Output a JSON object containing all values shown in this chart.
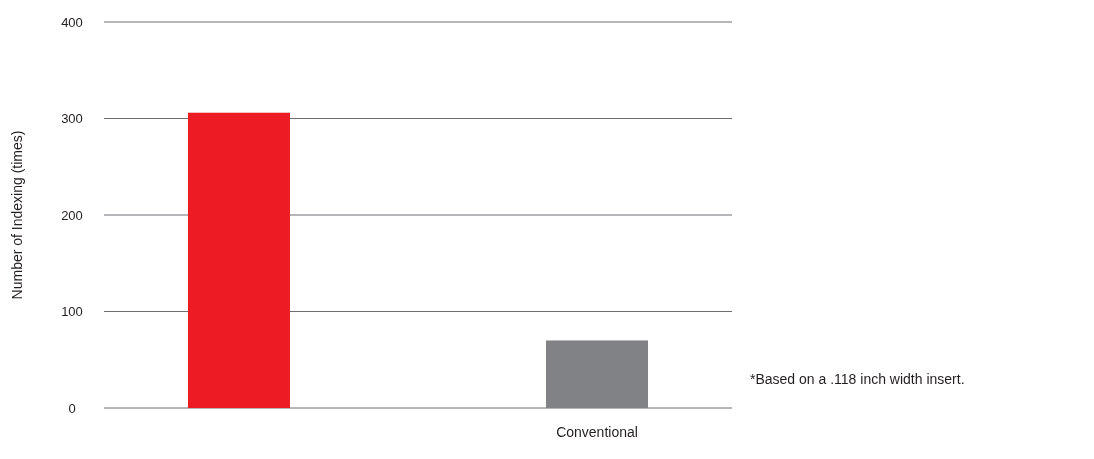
{
  "chart_data": {
    "type": "bar",
    "ylabel": "Number of Indexing (times)",
    "categories": [
      null,
      "Conventional"
    ],
    "values": [
      306,
      70
    ],
    "colors": [
      "#ed1c24",
      "#808285"
    ],
    "ylim": [
      0,
      400
    ],
    "yticks": [
      0,
      100,
      200,
      300,
      400
    ],
    "grid": "y",
    "annotations": [
      "*Based on a .118 inch width insert."
    ]
  }
}
